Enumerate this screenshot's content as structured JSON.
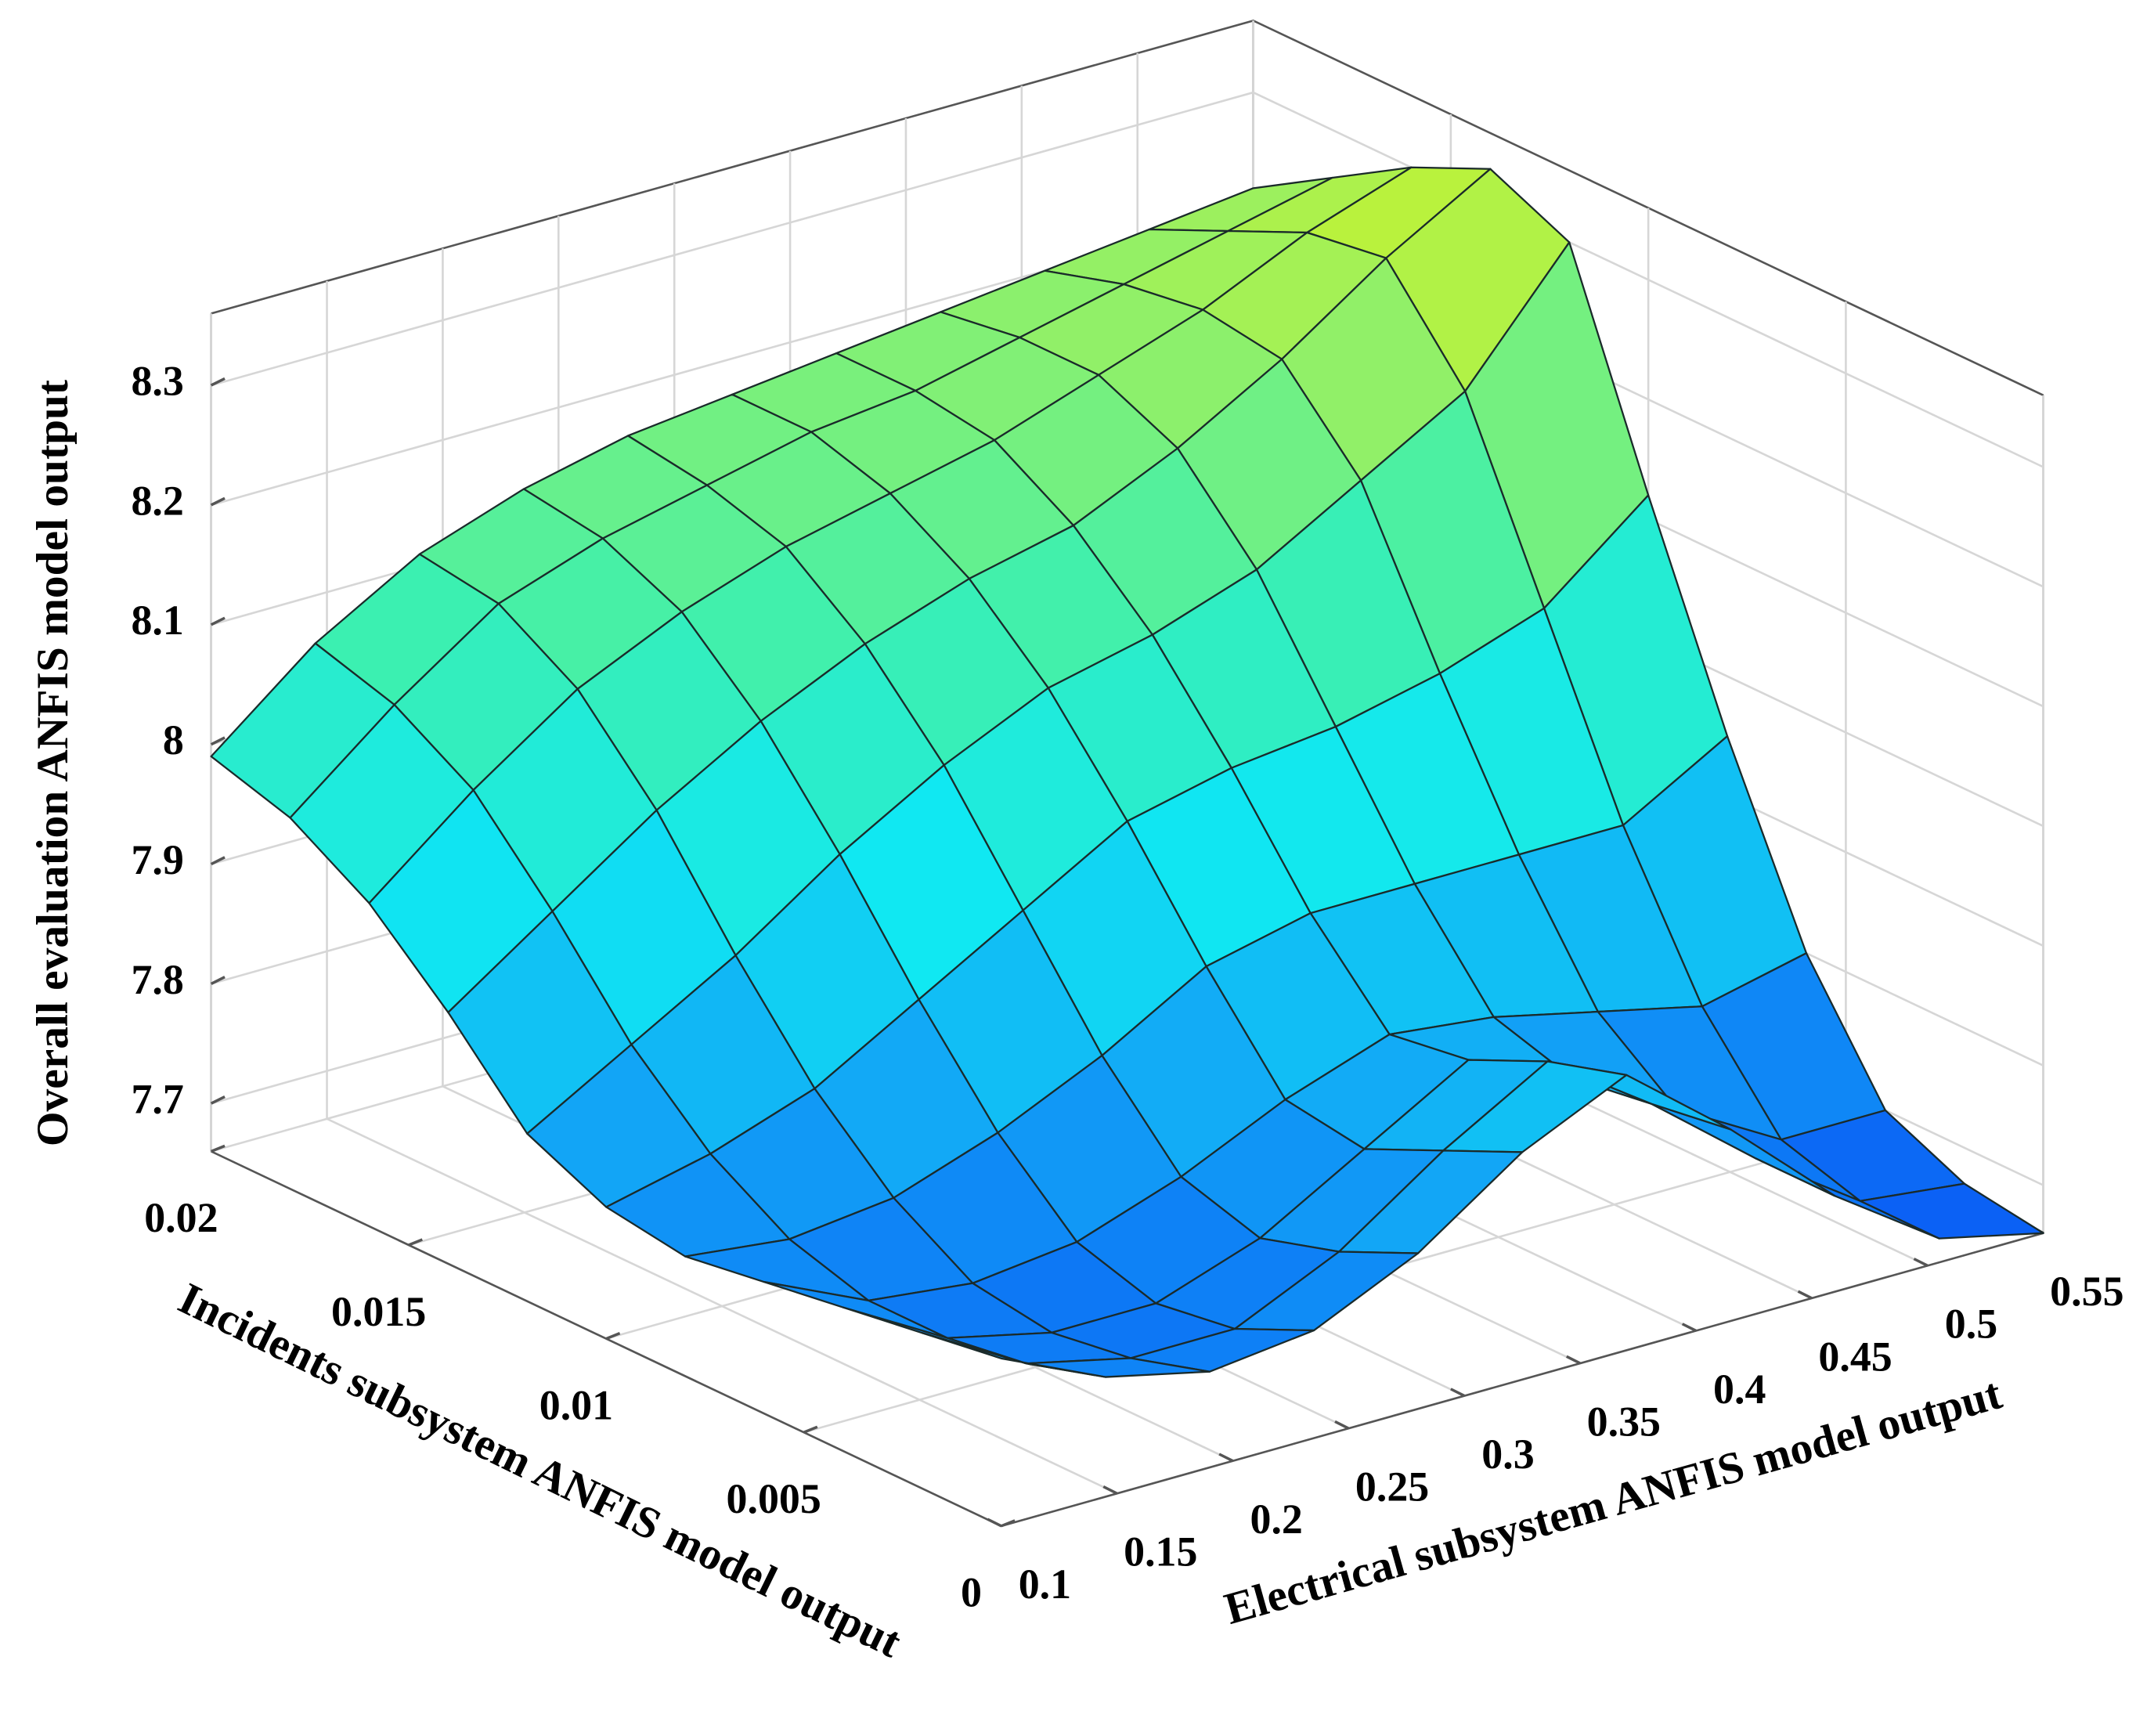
{
  "chart_data": {
    "type": "surface",
    "x_label": "Electrical subsystem ANFIS model output",
    "y_label": "Incidents subsystem ANFIS model output",
    "z_label": "Overall evaluation ANFIS model output",
    "x": [
      0.1,
      0.145,
      0.19,
      0.235,
      0.28,
      0.325,
      0.37,
      0.415,
      0.46,
      0.505,
      0.55
    ],
    "y": [
      0,
      0.002,
      0.004,
      0.006,
      0.008,
      0.01,
      0.012,
      0.014,
      0.016,
      0.018,
      0.02
    ],
    "z": [
      [
        7.8,
        7.76,
        7.74,
        7.75,
        7.79,
        7.85,
        7.89,
        7.82,
        7.74,
        7.68,
        7.66
      ],
      [
        7.79,
        7.74,
        7.72,
        7.72,
        7.76,
        7.82,
        7.87,
        7.81,
        7.74,
        7.68,
        7.67
      ],
      [
        7.78,
        7.73,
        7.71,
        7.71,
        7.74,
        7.79,
        7.84,
        7.8,
        7.75,
        7.7,
        7.7
      ],
      [
        7.77,
        7.73,
        7.72,
        7.73,
        7.76,
        7.8,
        7.83,
        7.82,
        7.8,
        7.78,
        7.8
      ],
      [
        7.76,
        7.75,
        7.76,
        7.79,
        7.83,
        7.88,
        7.9,
        7.9,
        7.9,
        7.9,
        7.95
      ],
      [
        7.77,
        7.79,
        7.82,
        7.87,
        7.92,
        7.97,
        7.99,
        8.0,
        8.02,
        8.05,
        8.12
      ],
      [
        7.8,
        7.85,
        7.9,
        7.96,
        8.01,
        8.05,
        8.07,
        8.1,
        8.15,
        8.2,
        8.3
      ],
      [
        7.87,
        7.93,
        7.99,
        8.04,
        8.08,
        8.11,
        8.13,
        8.17,
        8.22,
        8.28,
        8.33
      ],
      [
        7.93,
        8.0,
        8.06,
        8.1,
        8.13,
        8.15,
        8.17,
        8.2,
        8.23,
        8.27,
        8.3
      ],
      [
        7.97,
        8.04,
        8.1,
        8.13,
        8.15,
        8.17,
        8.18,
        8.2,
        8.22,
        8.24,
        8.26
      ],
      [
        7.99,
        8.06,
        8.11,
        8.14,
        8.16,
        8.17,
        8.18,
        8.19,
        8.2,
        8.21,
        8.22
      ]
    ],
    "xlim": [
      0.1,
      0.55
    ],
    "ylim": [
      0,
      0.02
    ],
    "zlim": [
      7.66,
      8.36
    ],
    "xticks": [
      0.1,
      0.15,
      0.2,
      0.25,
      0.3,
      0.35,
      0.4,
      0.45,
      0.5,
      0.55
    ],
    "yticks": [
      0,
      0.005,
      0.01,
      0.015,
      0.02
    ],
    "zticks": [
      7.7,
      7.8,
      7.9,
      8,
      8.1,
      8.2,
      8.3
    ],
    "colormap": [
      "#0a5af5",
      "#12a4f6",
      "#10e8f2",
      "#3cf0b0",
      "#96f064",
      "#d8f41c"
    ],
    "grid": true
  }
}
